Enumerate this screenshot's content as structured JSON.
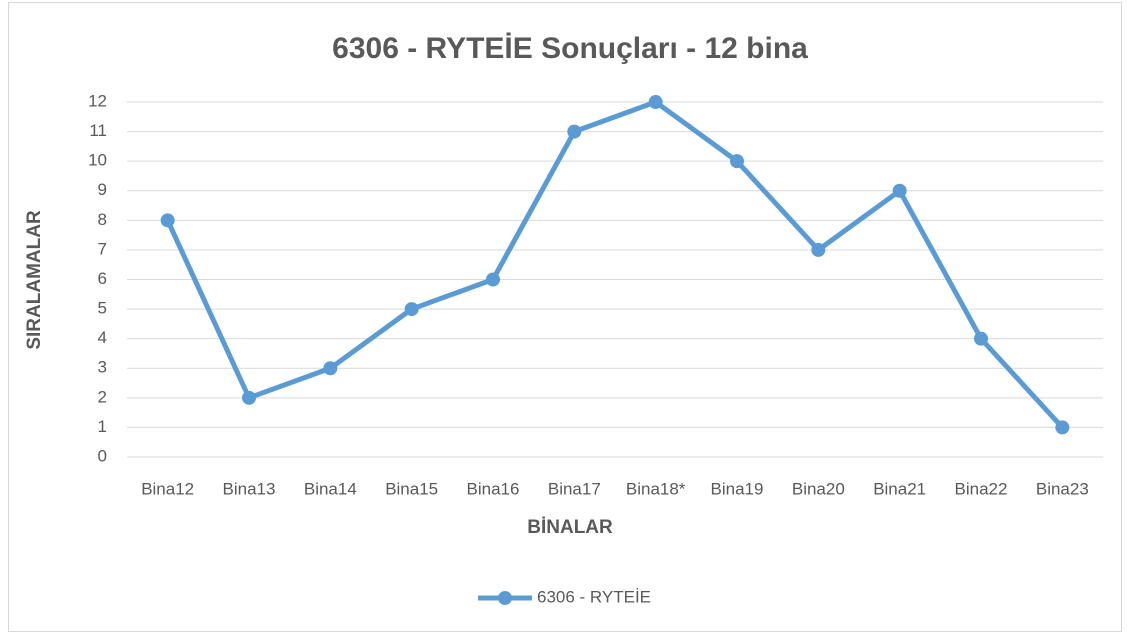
{
  "chart_data": {
    "type": "line",
    "title": "6306 - RYTEİE Sonuçları - 12 bina",
    "x_label": "BİNALAR",
    "y_label": "SIRALAMALAR",
    "categories": [
      "Bina12",
      "Bina13",
      "Bina14",
      "Bina15",
      "Bina16",
      "Bina17",
      "Bina18*",
      "Bina19",
      "Bina20",
      "Bina21",
      "Bina22",
      "Bina23"
    ],
    "series": [
      {
        "name": "6306 - RYTEİE",
        "color": "#5b9bd5",
        "values": [
          8,
          2,
          3,
          5,
          6,
          11,
          12,
          10,
          7,
          9,
          4,
          1
        ]
      }
    ],
    "ylim": [
      0,
      12
    ],
    "yticks": [
      0,
      1,
      2,
      3,
      4,
      5,
      6,
      7,
      8,
      9,
      10,
      11,
      12
    ],
    "grid": true,
    "legend": "bottom"
  }
}
